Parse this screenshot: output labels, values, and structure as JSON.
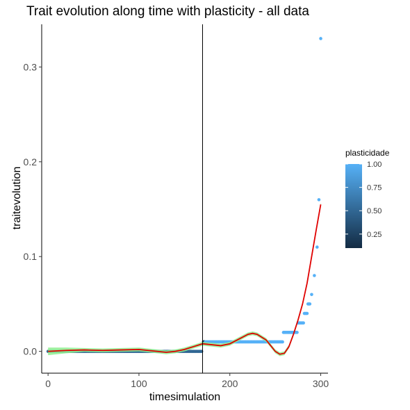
{
  "chart_data": {
    "type": "scatter",
    "title": "Trait evolution along time with plasticity - all data",
    "xlabel": "timesimulation",
    "ylabel": "traitevolution",
    "xlim": [
      -7,
      308
    ],
    "ylim": [
      -0.023,
      0.345
    ],
    "x_ticks": [
      0,
      100,
      200,
      300
    ],
    "y_ticks": [
      0.0,
      0.1,
      0.2,
      0.3
    ],
    "x_tick_labels": [
      "0",
      "100",
      "200",
      "300"
    ],
    "y_tick_labels": [
      "0.0",
      "0.1",
      "0.2",
      "0.3"
    ],
    "grid": false,
    "vline_x": 170,
    "legend": {
      "title": "plasticidade",
      "type": "colorbar",
      "placement": "right",
      "range": [
        0.1,
        1.0
      ],
      "ticks": [
        0.25,
        0.5,
        0.75,
        1.0
      ],
      "tick_labels": [
        "0.25",
        "0.50",
        "0.75",
        "1.00"
      ],
      "colors": [
        "#132B43",
        "#56B1F7"
      ]
    },
    "points_description": "traitevolution vs timesimulation, colored by plasticidade",
    "points": [
      {
        "x_from": 0,
        "x_to": 169,
        "y": 0.0,
        "plasticidade": 0.5
      },
      {
        "x_from": 171,
        "x_to": 172,
        "y": 0.01,
        "plasticidade": 0.15
      },
      {
        "x_from": 173,
        "x_to": 258,
        "y": 0.01,
        "plasticidade": 1.0
      },
      {
        "x_from": 259,
        "x_to": 274,
        "y": 0.02,
        "plasticidade": 1.0
      },
      {
        "x_from": 275,
        "x_to": 281,
        "y": 0.03,
        "plasticidade": 1.0
      },
      {
        "x_from": 282,
        "x_to": 285,
        "y": 0.04,
        "plasticidade": 1.0
      },
      {
        "x_from": 286,
        "x_to": 288,
        "y": 0.05,
        "plasticidade": 1.0
      },
      {
        "x": 290,
        "y": 0.06,
        "plasticidade": 1.0
      },
      {
        "x": 293,
        "y": 0.08,
        "plasticidade": 1.0
      },
      {
        "x": 296,
        "y": 0.11,
        "plasticidade": 1.0
      },
      {
        "x": 298,
        "y": 0.16,
        "plasticidade": 1.0
      },
      {
        "x": 300,
        "y": 0.33,
        "plasticidade": 1.0
      }
    ],
    "smooth_line": {
      "color": "#e00000",
      "band_color": "#90ee90",
      "x": [
        0,
        20,
        40,
        60,
        80,
        100,
        110,
        120,
        130,
        140,
        150,
        160,
        170,
        180,
        190,
        200,
        210,
        220,
        225,
        230,
        240,
        245,
        250,
        255,
        260,
        265,
        270,
        275,
        280,
        285,
        290,
        295,
        300
      ],
      "y": [
        0.0,
        0.001,
        0.0015,
        0.001,
        0.0015,
        0.002,
        0.001,
        0.0,
        -0.001,
        0.0,
        0.002,
        0.005,
        0.008,
        0.007,
        0.006,
        0.008,
        0.013,
        0.018,
        0.019,
        0.018,
        0.012,
        0.006,
        0.0,
        -0.003,
        -0.002,
        0.005,
        0.018,
        0.033,
        0.05,
        0.072,
        0.1,
        0.128,
        0.155
      ],
      "band_halfwidth": [
        0.004,
        0.003,
        0.002,
        0.002,
        0.002,
        0.002,
        0.002,
        0.002,
        0.002,
        0.002,
        0.002,
        0.002,
        0.002,
        0.002,
        0.002,
        0.002,
        0.002,
        0.002,
        0.002,
        0.002,
        0.002,
        0.002,
        0.002,
        0.002,
        0.002,
        0.002,
        0.002,
        0.002,
        0.002,
        0.002,
        0.002,
        0.002,
        0.002
      ]
    }
  }
}
